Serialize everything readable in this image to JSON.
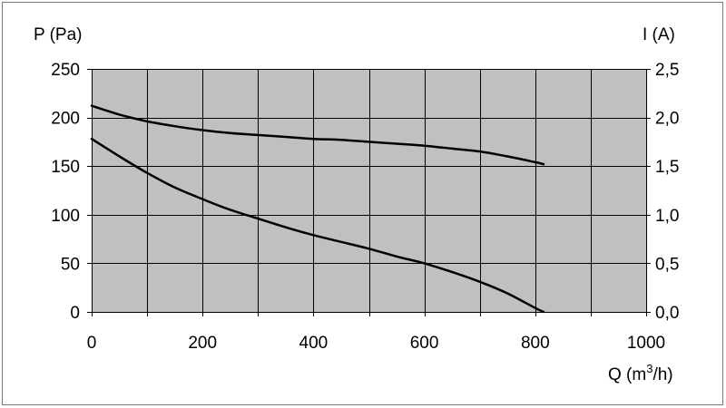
{
  "chart_data": {
    "type": "line",
    "left_axis_title": "P (Pa)",
    "right_axis_title": "I (A)",
    "xlabel_main": "Q (m",
    "xlabel_sup": "3",
    "xlabel_tail": "/h)",
    "xlim": [
      0,
      1000
    ],
    "ylim_left": [
      0,
      250
    ],
    "ylim_right": [
      0,
      2.5
    ],
    "x_ticks": [
      "0",
      "200",
      "400",
      "600",
      "800",
      "1000"
    ],
    "x_tick_values": [
      0,
      200,
      400,
      600,
      800,
      1000
    ],
    "y_left_ticks": [
      "0",
      "50",
      "100",
      "150",
      "200",
      "250"
    ],
    "y_left_tick_values": [
      0,
      50,
      100,
      150,
      200,
      250
    ],
    "y_right_ticks": [
      "0,0",
      "0,5",
      "1,0",
      "1,5",
      "2,0",
      "2,5"
    ],
    "x_grid_step": 100,
    "y_grid_step": 50,
    "grid": true,
    "plot_background": "#c0c0c0",
    "grid_color": "#000000",
    "series": [
      {
        "axis": "right",
        "color": "#000000",
        "x": [
          0,
          50,
          100,
          150,
          200,
          250,
          300,
          350,
          400,
          450,
          500,
          550,
          600,
          650,
          700,
          750,
          800,
          815
        ],
        "y": [
          2.12,
          2.03,
          1.96,
          1.91,
          1.87,
          1.84,
          1.82,
          1.8,
          1.78,
          1.77,
          1.75,
          1.73,
          1.71,
          1.68,
          1.65,
          1.6,
          1.54,
          1.52
        ]
      },
      {
        "axis": "left",
        "color": "#000000",
        "x": [
          0,
          50,
          100,
          150,
          200,
          250,
          300,
          350,
          400,
          450,
          500,
          550,
          600,
          650,
          700,
          750,
          800,
          815
        ],
        "y": [
          178,
          160,
          143,
          128,
          116,
          105,
          96,
          87,
          79,
          72,
          65,
          57,
          50,
          41,
          31,
          19,
          4,
          0
        ]
      }
    ]
  }
}
